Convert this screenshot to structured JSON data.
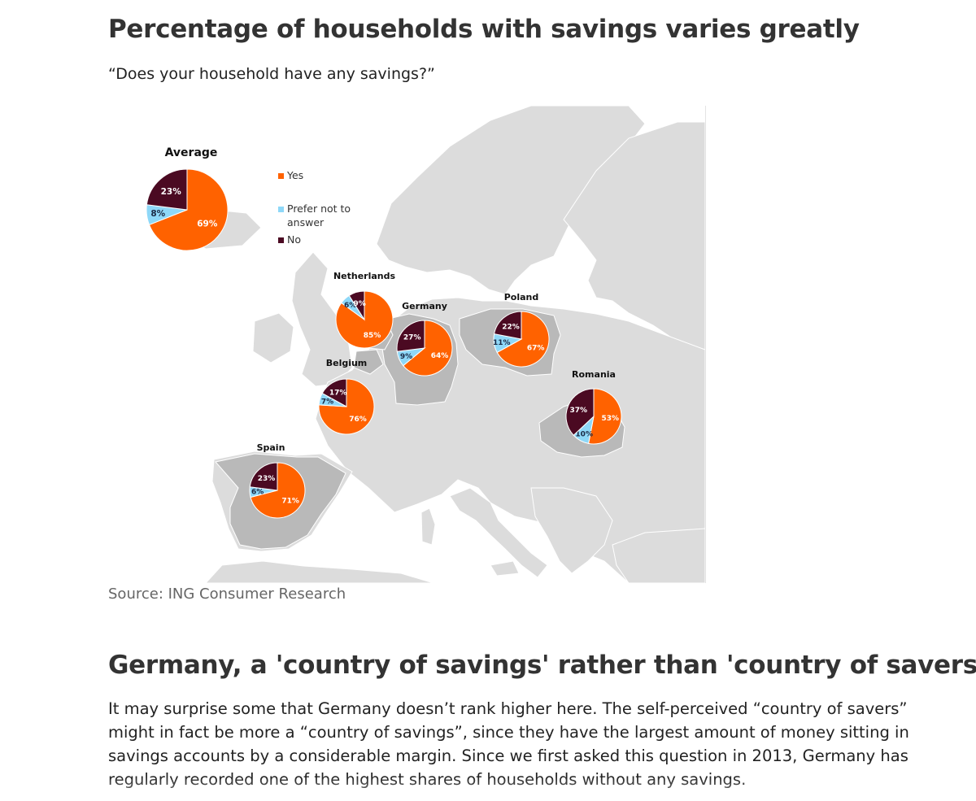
{
  "header": {
    "title": "Percentage of households with savings varies greatly",
    "question": "“Does your household have any savings?”"
  },
  "figure": {
    "source": "Source: ING Consumer Research"
  },
  "section": {
    "title": "Germany, a 'country of savings' rather than 'country of savers'",
    "paragraph": "It may surprise some that Germany doesn’t rank higher here. The self-perceived “country of savers” might in fact be more a “country of savings”, since they have the largest amount of money sitting in savings accounts by a considerable margin. Since we first asked this question in 2013, Germany has regularly recorded one of the highest shares of households without any savings."
  },
  "colors": {
    "yes": "#ff6200",
    "prefer_not": "#8ed8f8",
    "no": "#4b0a22",
    "land": "#dcdcdc",
    "highlight_land": "#b9b9b9"
  },
  "chart_data": {
    "type": "pie",
    "title": "",
    "legend": [
      {
        "key": "yes",
        "label": "Yes"
      },
      {
        "key": "prefer_not",
        "label": "Prefer not to answer"
      },
      {
        "key": "no",
        "label": "No"
      }
    ],
    "legend_position": "top-center",
    "series_order": [
      "yes",
      "prefer_not",
      "no"
    ],
    "pies": [
      {
        "name": "Average",
        "yes": 69,
        "prefer_not": 8,
        "no": 23
      },
      {
        "name": "Netherlands",
        "yes": 85,
        "prefer_not": 6,
        "no": 9
      },
      {
        "name": "Germany",
        "yes": 64,
        "prefer_not": 9,
        "no": 27
      },
      {
        "name": "Poland",
        "yes": 67,
        "prefer_not": 11,
        "no": 22
      },
      {
        "name": "Belgium",
        "yes": 76,
        "prefer_not": 7,
        "no": 17
      },
      {
        "name": "Romania",
        "yes": 53,
        "prefer_not": 10,
        "no": 37
      },
      {
        "name": "Spain",
        "yes": 71,
        "prefer_not": 6,
        "no": 23
      }
    ]
  }
}
